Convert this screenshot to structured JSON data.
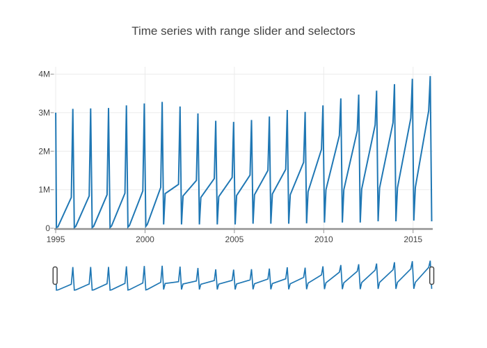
{
  "chart_data": {
    "type": "line",
    "title": "Time series with range slider and selectors",
    "unit": "millions",
    "x_ticks": [
      {
        "label": "1995",
        "year": 1995
      },
      {
        "label": "2000",
        "year": 2000
      },
      {
        "label": "2005",
        "year": 2005
      },
      {
        "label": "2010",
        "year": 2010
      },
      {
        "label": "2015",
        "year": 2015
      }
    ],
    "y_ticks": [
      {
        "label": "0",
        "value": 0
      },
      {
        "label": "1M",
        "value": 1
      },
      {
        "label": "2M",
        "value": 2
      },
      {
        "label": "3M",
        "value": 3
      },
      {
        "label": "4M",
        "value": 4
      }
    ],
    "layout": {
      "x_range": [
        1994.92,
        2016.1
      ],
      "y_range": [
        0,
        4.19
      ],
      "grid": true,
      "legend": false,
      "rangeslider": true
    },
    "colors": {
      "line": "#1f77b4",
      "grid": "#ebebeb",
      "axis_line": "#919191",
      "tick_text": "#444444",
      "handle_border": "#444444",
      "handle_fill": "#ffffff"
    },
    "start_point": {
      "x": 1995,
      "y": 3.0
    },
    "end_point": {
      "x": 2016.042,
      "y": 0.18
    },
    "yearly_series": [
      {
        "year": 1995,
        "jan": 0.02,
        "feb": 0.04,
        "nov": 0.8,
        "dec": 3.1
      },
      {
        "year": 1996,
        "jan": 0.02,
        "feb": 0.05,
        "nov": 0.84,
        "dec": 3.11
      },
      {
        "year": 1997,
        "jan": 0.02,
        "feb": 0.05,
        "nov": 0.87,
        "dec": 3.12
      },
      {
        "year": 1998,
        "jan": 0.02,
        "feb": 0.06,
        "nov": 0.91,
        "dec": 3.19
      },
      {
        "year": 1999,
        "jan": 0.03,
        "feb": 0.07,
        "nov": 0.97,
        "dec": 3.24
      },
      {
        "year": 2000,
        "jan": 0.05,
        "feb": 0.1,
        "nov": 1.06,
        "dec": 3.28
      },
      {
        "year": 2001,
        "jan": 0.1,
        "feb": 0.9,
        "nov": 1.14,
        "dec": 3.16
      },
      {
        "year": 2002,
        "jan": 0.1,
        "feb": 0.84,
        "nov": 1.24,
        "dec": 2.98
      },
      {
        "year": 2003,
        "jan": 0.1,
        "feb": 0.8,
        "nov": 1.29,
        "dec": 2.79
      },
      {
        "year": 2004,
        "jan": 0.1,
        "feb": 0.82,
        "nov": 1.32,
        "dec": 2.76
      },
      {
        "year": 2005,
        "jan": 0.1,
        "feb": 0.85,
        "nov": 1.38,
        "dec": 2.81
      },
      {
        "year": 2006,
        "jan": 0.12,
        "feb": 0.87,
        "nov": 1.5,
        "dec": 2.9
      },
      {
        "year": 2007,
        "jan": 0.12,
        "feb": 0.89,
        "nov": 1.53,
        "dec": 3.07
      },
      {
        "year": 2008,
        "jan": 0.12,
        "feb": 0.87,
        "nov": 1.71,
        "dec": 3.02
      },
      {
        "year": 2009,
        "jan": 0.13,
        "feb": 0.95,
        "nov": 2.05,
        "dec": 3.19
      },
      {
        "year": 2010,
        "jan": 0.15,
        "feb": 1.0,
        "nov": 2.41,
        "dec": 3.37
      },
      {
        "year": 2011,
        "jan": 0.15,
        "feb": 1.0,
        "nov": 2.53,
        "dec": 3.47
      },
      {
        "year": 2012,
        "jan": 0.15,
        "feb": 1.02,
        "nov": 2.68,
        "dec": 3.57
      },
      {
        "year": 2013,
        "jan": 0.18,
        "feb": 1.05,
        "nov": 2.74,
        "dec": 3.74
      },
      {
        "year": 2014,
        "jan": 0.18,
        "feb": 1.05,
        "nov": 2.86,
        "dec": 3.88
      },
      {
        "year": 2015,
        "jan": 0.2,
        "feb": 1.06,
        "nov": 3.05,
        "dec": 3.95
      }
    ]
  }
}
